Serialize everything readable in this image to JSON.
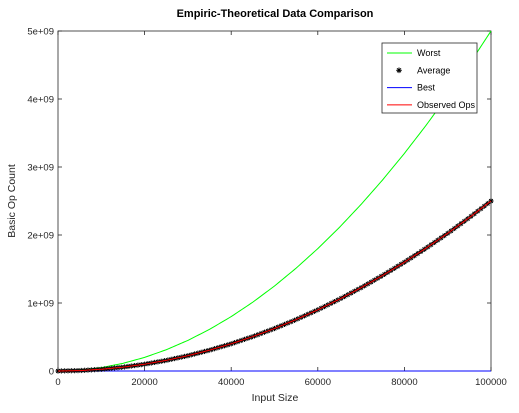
{
  "chart_data": {
    "type": "line",
    "title": "Empiric-Theoretical Data Comparison",
    "xlabel": "Input Size",
    "ylabel": "Basic Op Count",
    "xlim": [
      0,
      100000
    ],
    "ylim": [
      0,
      5000000000
    ],
    "xticks": [
      0,
      20000,
      40000,
      60000,
      80000,
      100000
    ],
    "xtick_labels": [
      "0",
      "20000",
      "40000",
      "60000",
      "80000",
      "100000"
    ],
    "yticks": [
      0,
      1000000000,
      2000000000,
      3000000000,
      4000000000,
      5000000000
    ],
    "ytick_labels": [
      "0",
      "1e+09",
      "2e+09",
      "3e+09",
      "4e+09",
      "5e+09"
    ],
    "grid": false,
    "legend_position": "top-right",
    "x": [
      0,
      5000,
      10000,
      15000,
      20000,
      25000,
      30000,
      35000,
      40000,
      45000,
      50000,
      55000,
      60000,
      65000,
      70000,
      75000,
      80000,
      85000,
      90000,
      95000,
      100000
    ],
    "series": [
      {
        "name": "Worst",
        "style": "line",
        "color": "#00ff00",
        "values": [
          0,
          12500000,
          50000000,
          112500000,
          200000000,
          312500000,
          450000000,
          612500000,
          800000000,
          1012500000,
          1250000000,
          1512500000,
          1800000000,
          2112500000,
          2450000000,
          2812500000,
          3200000000,
          3612500000,
          4050000000,
          4512500000,
          5000000000
        ]
      },
      {
        "name": "Average",
        "style": "markers",
        "marker": "asterisk",
        "color": "#000000",
        "values": [
          0,
          6250000,
          25000000,
          56250000,
          100000000,
          156250000,
          225000000,
          306250000,
          400000000,
          506250000,
          625000000,
          756250000,
          900000000,
          1056250000,
          1225000000,
          1406250000,
          1600000000,
          1806250000,
          2025000000,
          2256250000,
          2500000000
        ]
      },
      {
        "name": "Best",
        "style": "line",
        "color": "#0000ff",
        "values": [
          0,
          5000,
          10000,
          15000,
          20000,
          25000,
          30000,
          35000,
          40000,
          45000,
          50000,
          55000,
          60000,
          65000,
          70000,
          75000,
          80000,
          85000,
          90000,
          95000,
          100000
        ]
      },
      {
        "name": "Observed Ops",
        "style": "line",
        "color": "#ff0000",
        "values": [
          0,
          6250000,
          25000000,
          56250000,
          100000000,
          156250000,
          225000000,
          306250000,
          400000000,
          506250000,
          625000000,
          756250000,
          900000000,
          1056250000,
          1225000000,
          1406250000,
          1600000000,
          1806250000,
          2025000000,
          2256250000,
          2500000000
        ]
      }
    ]
  }
}
